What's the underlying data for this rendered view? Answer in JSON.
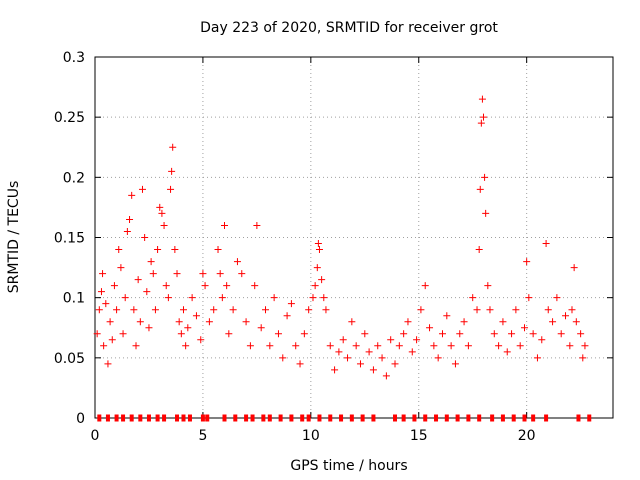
{
  "chart_data": {
    "type": "scatter",
    "title": "Day 223 of 2020, SRMTID for receiver grot",
    "xlabel": "GPS time / hours",
    "ylabel": "SRMTID / TECUs",
    "xlim": [
      0,
      24
    ],
    "ylim": [
      0,
      0.3
    ],
    "x_ticks": [
      0,
      5,
      10,
      15,
      20
    ],
    "x_tick_labels": [
      "0",
      "5",
      "10",
      "15",
      "20"
    ],
    "y_ticks": [
      0,
      0.05,
      0.1,
      0.15,
      0.2,
      0.25,
      0.3
    ],
    "y_tick_labels": [
      "0",
      "0.05",
      "0.1",
      "0.15",
      "0.2",
      "0.25",
      "0.3"
    ],
    "grid": true,
    "marker": "plus",
    "series": [
      {
        "name": "SRMTID",
        "color": "#ff0000",
        "points": [
          [
            0.1,
            0.07
          ],
          [
            0.2,
            0.09
          ],
          [
            0.3,
            0.105
          ],
          [
            0.35,
            0.12
          ],
          [
            0.4,
            0.06
          ],
          [
            0.5,
            0.095
          ],
          [
            0.6,
            0.045
          ],
          [
            0.7,
            0.08
          ],
          [
            0.8,
            0.065
          ],
          [
            0.9,
            0.11
          ],
          [
            1.0,
            0.09
          ],
          [
            1.1,
            0.14
          ],
          [
            1.2,
            0.125
          ],
          [
            1.3,
            0.07
          ],
          [
            1.4,
            0.1
          ],
          [
            1.5,
            0.155
          ],
          [
            1.6,
            0.165
          ],
          [
            1.7,
            0.185
          ],
          [
            1.8,
            0.09
          ],
          [
            1.9,
            0.06
          ],
          [
            2.0,
            0.115
          ],
          [
            2.1,
            0.08
          ],
          [
            2.2,
            0.19
          ],
          [
            2.3,
            0.15
          ],
          [
            2.4,
            0.105
          ],
          [
            2.5,
            0.075
          ],
          [
            2.6,
            0.13
          ],
          [
            2.7,
            0.12
          ],
          [
            2.8,
            0.09
          ],
          [
            2.9,
            0.14
          ],
          [
            3.0,
            0.175
          ],
          [
            3.1,
            0.17
          ],
          [
            3.2,
            0.16
          ],
          [
            3.3,
            0.11
          ],
          [
            3.4,
            0.1
          ],
          [
            3.5,
            0.19
          ],
          [
            3.55,
            0.205
          ],
          [
            3.6,
            0.225
          ],
          [
            3.7,
            0.14
          ],
          [
            3.8,
            0.12
          ],
          [
            3.9,
            0.08
          ],
          [
            4.0,
            0.07
          ],
          [
            4.1,
            0.09
          ],
          [
            4.2,
            0.06
          ],
          [
            4.3,
            0.075
          ],
          [
            4.5,
            0.1
          ],
          [
            4.7,
            0.085
          ],
          [
            4.9,
            0.065
          ],
          [
            5.0,
            0.12
          ],
          [
            5.1,
            0.11
          ],
          [
            5.3,
            0.08
          ],
          [
            5.5,
            0.09
          ],
          [
            5.7,
            0.14
          ],
          [
            5.8,
            0.12
          ],
          [
            5.9,
            0.1
          ],
          [
            6.0,
            0.16
          ],
          [
            6.1,
            0.11
          ],
          [
            6.2,
            0.07
          ],
          [
            6.4,
            0.09
          ],
          [
            6.6,
            0.13
          ],
          [
            6.8,
            0.12
          ],
          [
            7.0,
            0.08
          ],
          [
            7.2,
            0.06
          ],
          [
            7.4,
            0.11
          ],
          [
            7.5,
            0.16
          ],
          [
            7.7,
            0.075
          ],
          [
            7.9,
            0.09
          ],
          [
            8.1,
            0.06
          ],
          [
            8.3,
            0.1
          ],
          [
            8.5,
            0.07
          ],
          [
            8.7,
            0.05
          ],
          [
            8.9,
            0.085
          ],
          [
            9.1,
            0.095
          ],
          [
            9.3,
            0.06
          ],
          [
            9.5,
            0.045
          ],
          [
            9.7,
            0.07
          ],
          [
            9.9,
            0.09
          ],
          [
            10.1,
            0.1
          ],
          [
            10.2,
            0.11
          ],
          [
            10.3,
            0.125
          ],
          [
            10.35,
            0.145
          ],
          [
            10.4,
            0.14
          ],
          [
            10.5,
            0.115
          ],
          [
            10.6,
            0.1
          ],
          [
            10.7,
            0.09
          ],
          [
            10.9,
            0.06
          ],
          [
            11.1,
            0.04
          ],
          [
            11.3,
            0.055
          ],
          [
            11.5,
            0.065
          ],
          [
            11.7,
            0.05
          ],
          [
            11.9,
            0.08
          ],
          [
            12.1,
            0.06
          ],
          [
            12.3,
            0.045
          ],
          [
            12.5,
            0.07
          ],
          [
            12.7,
            0.055
          ],
          [
            12.9,
            0.04
          ],
          [
            13.1,
            0.06
          ],
          [
            13.3,
            0.05
          ],
          [
            13.5,
            0.035
          ],
          [
            13.7,
            0.065
          ],
          [
            13.9,
            0.045
          ],
          [
            14.1,
            0.06
          ],
          [
            14.3,
            0.07
          ],
          [
            14.5,
            0.08
          ],
          [
            14.7,
            0.055
          ],
          [
            14.9,
            0.065
          ],
          [
            15.1,
            0.09
          ],
          [
            15.3,
            0.11
          ],
          [
            15.5,
            0.075
          ],
          [
            15.7,
            0.06
          ],
          [
            15.9,
            0.05
          ],
          [
            16.1,
            0.07
          ],
          [
            16.3,
            0.085
          ],
          [
            16.5,
            0.06
          ],
          [
            16.7,
            0.045
          ],
          [
            16.9,
            0.07
          ],
          [
            17.1,
            0.08
          ],
          [
            17.3,
            0.06
          ],
          [
            17.5,
            0.1
          ],
          [
            17.7,
            0.09
          ],
          [
            17.8,
            0.14
          ],
          [
            17.85,
            0.19
          ],
          [
            17.9,
            0.245
          ],
          [
            17.95,
            0.265
          ],
          [
            18.0,
            0.25
          ],
          [
            18.05,
            0.2
          ],
          [
            18.1,
            0.17
          ],
          [
            18.2,
            0.11
          ],
          [
            18.3,
            0.09
          ],
          [
            18.5,
            0.07
          ],
          [
            18.7,
            0.06
          ],
          [
            18.9,
            0.08
          ],
          [
            19.1,
            0.055
          ],
          [
            19.3,
            0.07
          ],
          [
            19.5,
            0.09
          ],
          [
            19.7,
            0.06
          ],
          [
            19.9,
            0.075
          ],
          [
            20.0,
            0.13
          ],
          [
            20.1,
            0.1
          ],
          [
            20.3,
            0.07
          ],
          [
            20.5,
            0.05
          ],
          [
            20.7,
            0.065
          ],
          [
            20.9,
            0.145
          ],
          [
            21.0,
            0.09
          ],
          [
            21.2,
            0.08
          ],
          [
            21.4,
            0.1
          ],
          [
            21.6,
            0.07
          ],
          [
            21.8,
            0.085
          ],
          [
            22.0,
            0.06
          ],
          [
            22.1,
            0.09
          ],
          [
            22.2,
            0.125
          ],
          [
            22.3,
            0.08
          ],
          [
            22.5,
            0.07
          ],
          [
            22.6,
            0.05
          ],
          [
            22.7,
            0.06
          ]
        ],
        "zero_points": [
          0.2,
          0.6,
          1.0,
          1.3,
          1.7,
          2.1,
          2.5,
          2.9,
          3.2,
          3.8,
          4.1,
          4.4,
          5.0,
          5.2,
          6.0,
          6.5,
          7.0,
          7.3,
          7.8,
          8.1,
          8.6,
          9.1,
          9.6,
          9.9,
          10.4,
          10.9,
          11.4,
          11.9,
          12.4,
          12.9,
          13.9,
          14.3,
          14.8,
          15.3,
          15.8,
          16.3,
          16.8,
          17.3,
          17.8,
          18.4,
          18.9,
          19.4,
          19.9,
          20.3,
          20.9,
          22.4,
          22.9
        ]
      }
    ]
  }
}
